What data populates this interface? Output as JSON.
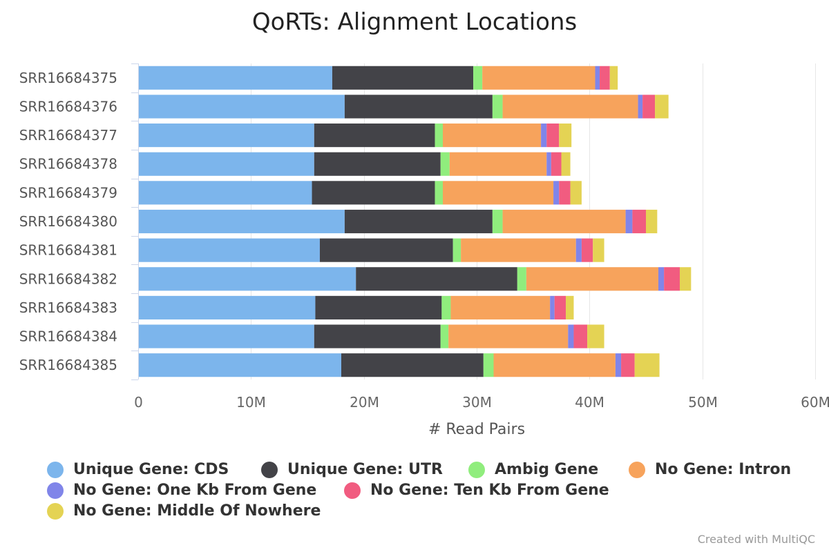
{
  "chart_data": {
    "type": "bar",
    "orientation": "horizontal",
    "stacked": true,
    "title": "QoRTs: Alignment Locations",
    "xlabel": "# Read Pairs",
    "ylabel": "",
    "xlim": [
      0,
      60000000
    ],
    "x_ticks": [
      0,
      10000000,
      20000000,
      30000000,
      40000000,
      50000000,
      60000000
    ],
    "x_tick_labels": [
      "0",
      "10M",
      "20M",
      "30M",
      "40M",
      "50M",
      "60M"
    ],
    "grid": true,
    "legend_position": "bottom",
    "categories": [
      "SRR16684375",
      "SRR16684376",
      "SRR16684377",
      "SRR16684378",
      "SRR16684379",
      "SRR16684380",
      "SRR16684381",
      "SRR16684382",
      "SRR16684383",
      "SRR16684384",
      "SRR16684385"
    ],
    "series": [
      {
        "name": "Unique Gene: CDS",
        "color": "#7cb5ec",
        "values": [
          17200000,
          18300000,
          15600000,
          15600000,
          15400000,
          18300000,
          16100000,
          19300000,
          15700000,
          15600000,
          18000000
        ]
      },
      {
        "name": "Unique Gene: UTR",
        "color": "#434348",
        "values": [
          12500000,
          13100000,
          10700000,
          11200000,
          10900000,
          13100000,
          11800000,
          14300000,
          11200000,
          11200000,
          12600000
        ]
      },
      {
        "name": "Ambig Gene",
        "color": "#90ed7d",
        "values": [
          800000,
          900000,
          700000,
          800000,
          700000,
          900000,
          700000,
          800000,
          800000,
          700000,
          900000
        ]
      },
      {
        "name": "No Gene: Intron",
        "color": "#f7a35c",
        "values": [
          10000000,
          12000000,
          8700000,
          8600000,
          9800000,
          10900000,
          10200000,
          11700000,
          8800000,
          10600000,
          10800000
        ]
      },
      {
        "name": "No Gene: One Kb From Gene",
        "color": "#8085e9",
        "values": [
          400000,
          400000,
          500000,
          400000,
          500000,
          600000,
          500000,
          500000,
          400000,
          500000,
          500000
        ]
      },
      {
        "name": "No Gene: Ten Kb From Gene",
        "color": "#f15c80",
        "values": [
          900000,
          1100000,
          1100000,
          900000,
          1000000,
          1200000,
          1000000,
          1400000,
          1000000,
          1200000,
          1200000
        ]
      },
      {
        "name": "No Gene: Middle Of Nowhere",
        "color": "#e4d354",
        "values": [
          700000,
          1200000,
          1100000,
          800000,
          1000000,
          1000000,
          1000000,
          1000000,
          700000,
          1500000,
          2200000
        ]
      }
    ]
  },
  "footer": {
    "credit": "Created with MultiQC"
  }
}
